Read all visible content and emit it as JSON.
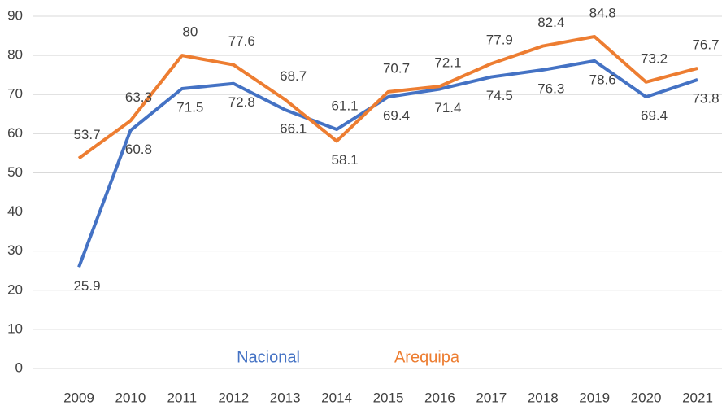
{
  "chart_data": {
    "type": "line",
    "categories": [
      "2009",
      "2010",
      "2011",
      "2012",
      "2013",
      "2014",
      "2015",
      "2016",
      "2017",
      "2018",
      "2019",
      "2020",
      "2021"
    ],
    "series": [
      {
        "name": "Nacional",
        "color": "#4472c4",
        "values": [
          25.9,
          60.8,
          71.5,
          72.8,
          66.1,
          61.1,
          69.4,
          71.4,
          74.5,
          76.3,
          78.6,
          69.4,
          73.8
        ]
      },
      {
        "name": "Arequipa",
        "color": "#ed7d31",
        "values": [
          53.7,
          63.3,
          80,
          77.6,
          68.7,
          58.1,
          70.7,
          72.1,
          77.9,
          82.4,
          84.8,
          73.2,
          76.7
        ]
      }
    ],
    "ylim": [
      0,
      90
    ],
    "yticks": [
      0,
      10,
      20,
      30,
      40,
      50,
      60,
      70,
      80,
      90
    ],
    "grid": true,
    "legend": "bottom"
  }
}
